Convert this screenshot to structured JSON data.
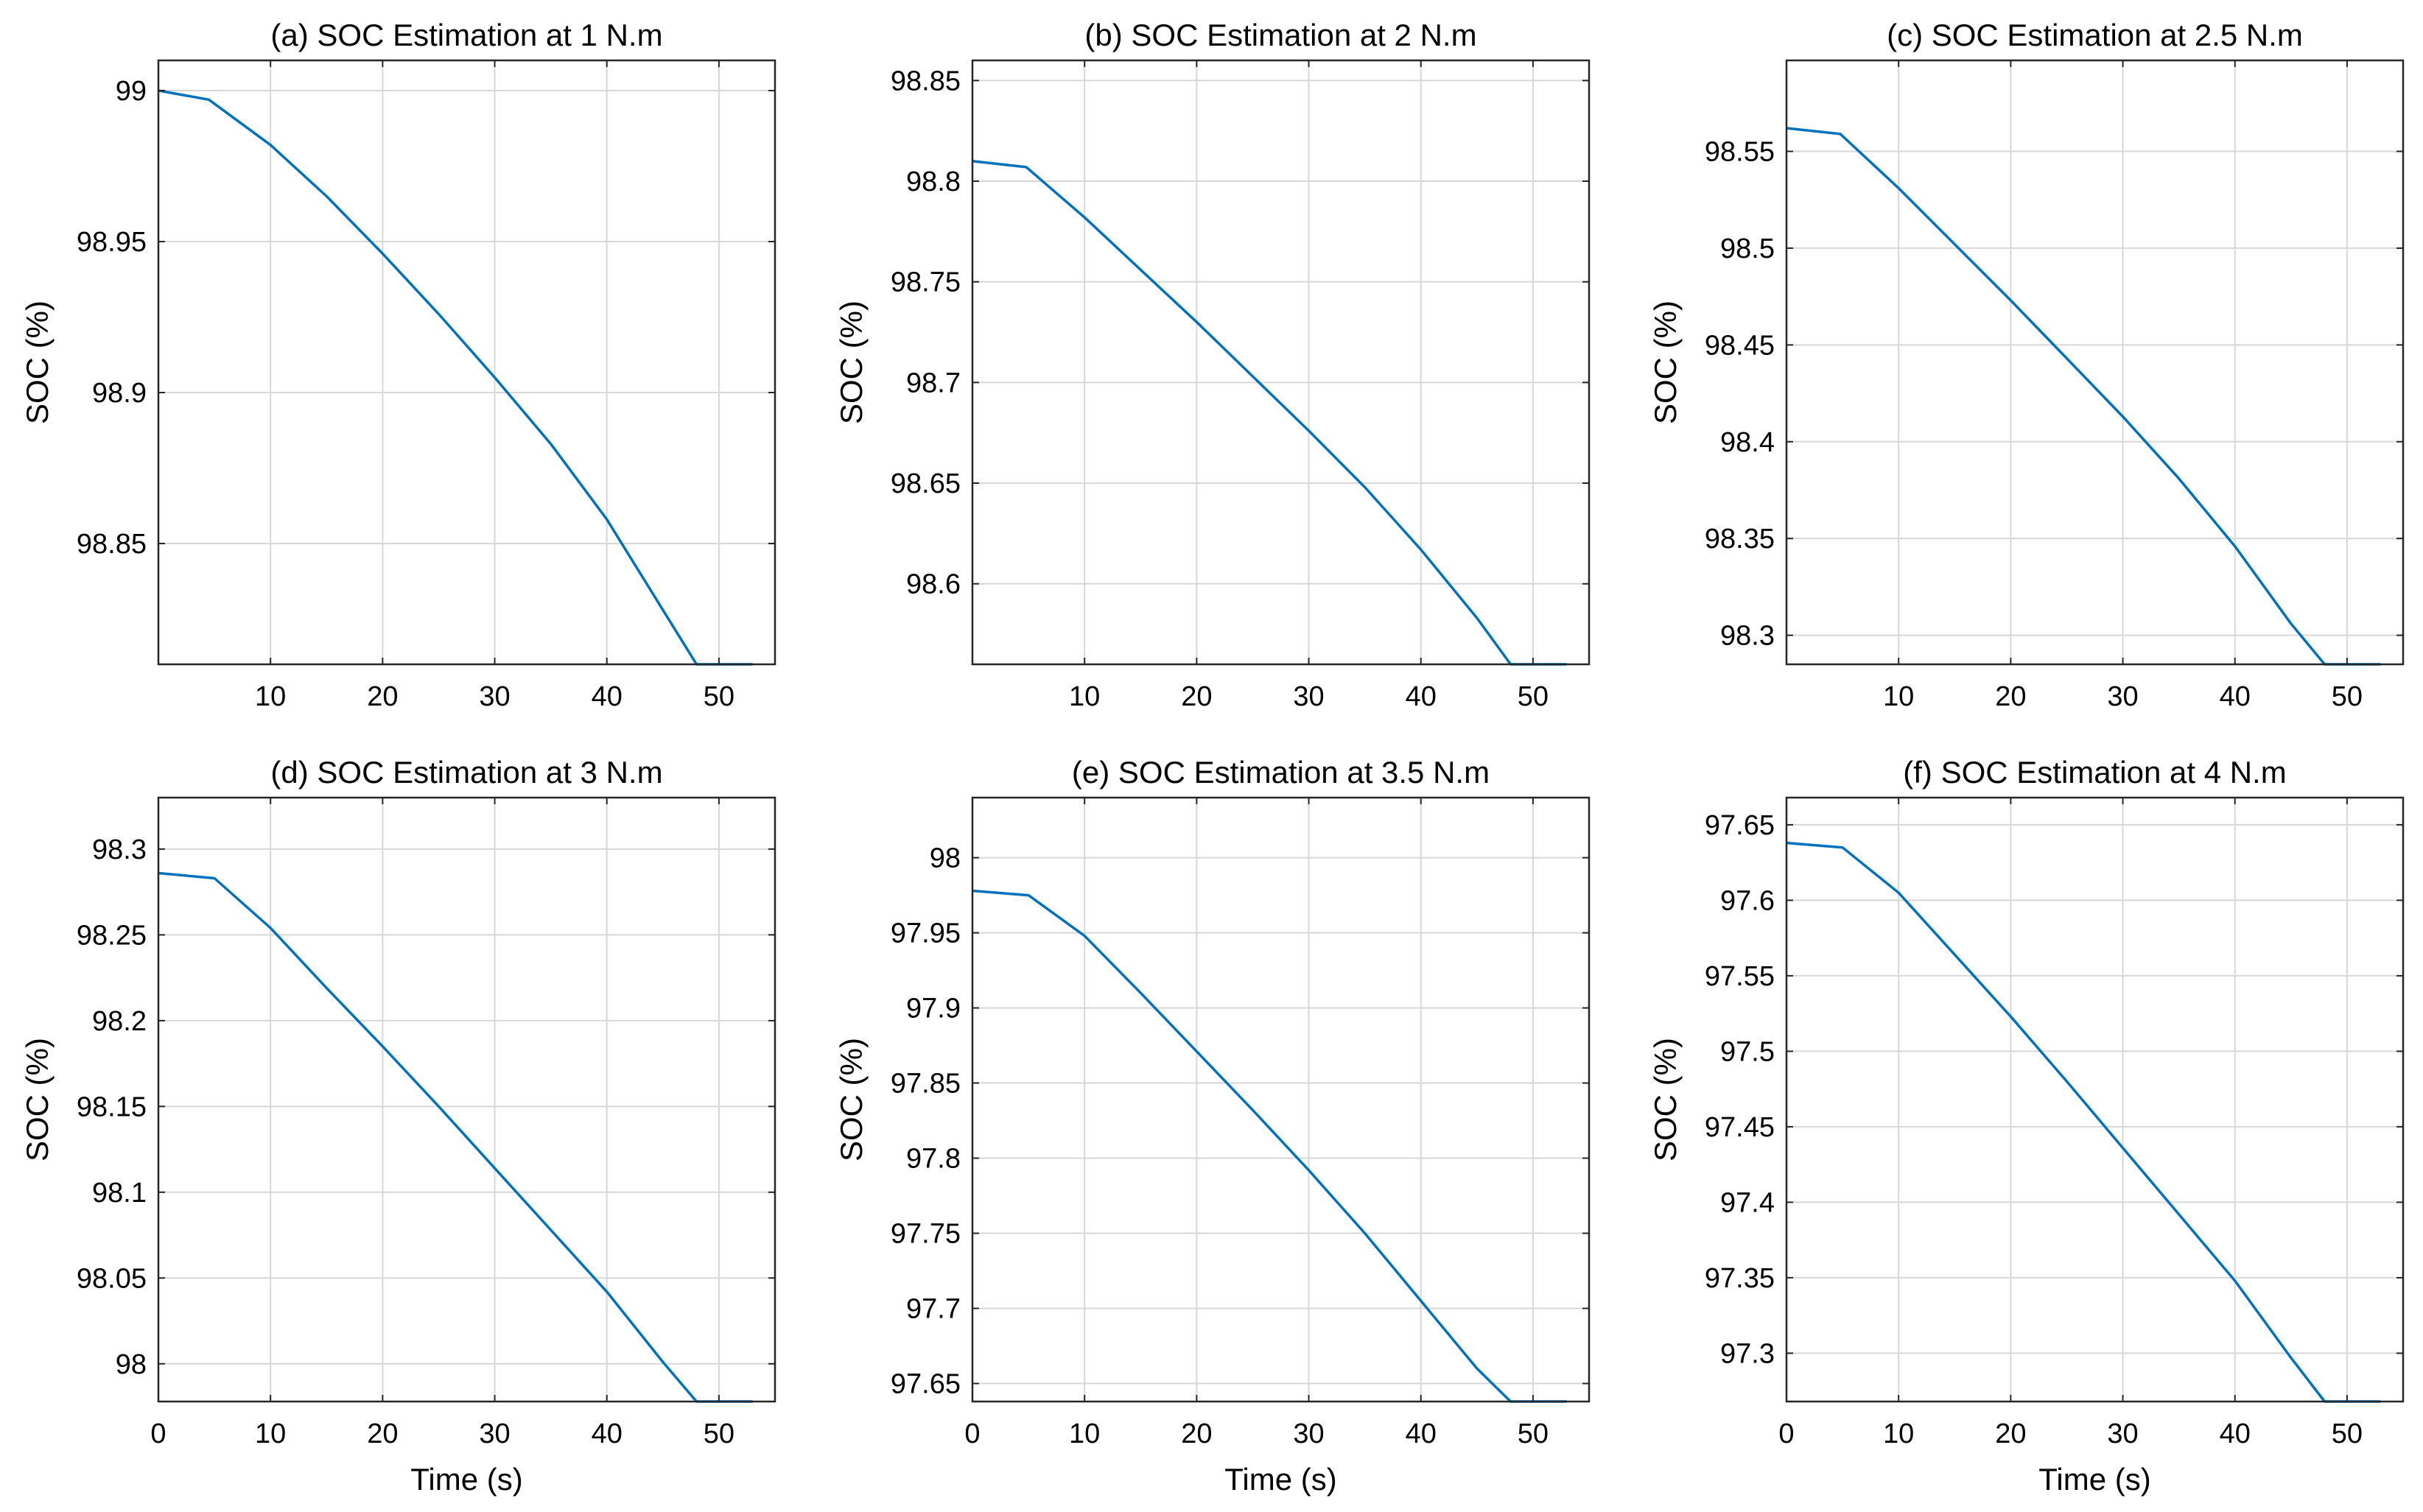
{
  "colors": {
    "series": "#0072BD",
    "grid": "#d7d7d7",
    "axis": "#262626"
  },
  "chart_data": [
    {
      "type": "line",
      "title": "(a) SOC Estimation at 1 N.m",
      "xlabel": "",
      "ylabel": "SOC (%)",
      "xlim": [
        0,
        55
      ],
      "ylim": [
        98.81,
        99.01
      ],
      "xticks": [
        10,
        20,
        30,
        40,
        50
      ],
      "xtick_labels": [
        "10",
        "20",
        "30",
        "40",
        "50"
      ],
      "yticks": [
        98.85,
        98.9,
        98.95,
        99
      ],
      "ytick_labels": [
        "98.85",
        "98.9",
        "98.95",
        "99"
      ],
      "grid": true,
      "series": [
        {
          "name": "SOC",
          "x": [
            0,
            4.5,
            10,
            15,
            20,
            25,
            30,
            35,
            40,
            45,
            48,
            53
          ],
          "y": [
            99.0,
            98.997,
            98.982,
            98.965,
            98.946,
            98.926,
            98.905,
            98.883,
            98.858,
            98.828,
            98.81,
            98.81
          ]
        }
      ]
    },
    {
      "type": "line",
      "title": "(b) SOC Estimation at 2 N.m",
      "xlabel": "",
      "ylabel": "SOC (%)",
      "xlim": [
        0,
        55
      ],
      "ylim": [
        98.56,
        98.86
      ],
      "xticks": [
        10,
        20,
        30,
        40,
        50
      ],
      "xtick_labels": [
        "10",
        "20",
        "30",
        "40",
        "50"
      ],
      "yticks": [
        98.6,
        98.65,
        98.7,
        98.75,
        98.8,
        98.85
      ],
      "ytick_labels": [
        "98.6",
        "98.65",
        "98.7",
        "98.75",
        "98.8",
        "98.85"
      ],
      "grid": true,
      "series": [
        {
          "name": "SOC",
          "x": [
            0,
            4.8,
            10,
            15,
            20,
            25,
            30,
            35,
            40,
            45,
            48,
            53
          ],
          "y": [
            98.81,
            98.807,
            98.782,
            98.756,
            98.73,
            98.703,
            98.676,
            98.648,
            98.617,
            98.583,
            98.56,
            98.56
          ]
        }
      ]
    },
    {
      "type": "line",
      "title": "(c) SOC Estimation at 2.5 N.m",
      "xlabel": "",
      "ylabel": "SOC (%)",
      "xlim": [
        0,
        55
      ],
      "ylim": [
        98.285,
        98.597
      ],
      "xticks": [
        10,
        20,
        30,
        40,
        50
      ],
      "xtick_labels": [
        "10",
        "20",
        "30",
        "40",
        "50"
      ],
      "yticks": [
        98.3,
        98.35,
        98.4,
        98.45,
        98.5,
        98.55
      ],
      "ytick_labels": [
        "98.3",
        "98.35",
        "98.4",
        "98.45",
        "98.5",
        "98.55"
      ],
      "grid": true,
      "series": [
        {
          "name": "SOC",
          "x": [
            0,
            4.8,
            10,
            15,
            20,
            25,
            30,
            35,
            40,
            45,
            48,
            53
          ],
          "y": [
            98.562,
            98.559,
            98.531,
            98.502,
            98.473,
            98.443,
            98.413,
            98.381,
            98.346,
            98.306,
            98.285,
            98.285
          ]
        }
      ]
    },
    {
      "type": "line",
      "title": "(d) SOC Estimation at 3 N.m",
      "xlabel": "Time (s)",
      "ylabel": "SOC (%)",
      "xlim": [
        0,
        55
      ],
      "ylim": [
        97.978,
        98.33
      ],
      "xticks": [
        0,
        10,
        20,
        30,
        40,
        50
      ],
      "xtick_labels": [
        "0",
        "10",
        "20",
        "30",
        "40",
        "50"
      ],
      "yticks": [
        98,
        98.05,
        98.1,
        98.15,
        98.2,
        98.25,
        98.3
      ],
      "ytick_labels": [
        "98",
        "98.05",
        "98.1",
        "98.15",
        "98.2",
        "98.25",
        "98.3"
      ],
      "grid": true,
      "series": [
        {
          "name": "SOC",
          "x": [
            0,
            5,
            10,
            15,
            20,
            25,
            30,
            35,
            40,
            45,
            48,
            53
          ],
          "y": [
            98.286,
            98.283,
            98.254,
            98.219,
            98.185,
            98.15,
            98.114,
            98.078,
            98.042,
            98.001,
            97.978,
            97.978
          ]
        }
      ]
    },
    {
      "type": "line",
      "title": "(e) SOC Estimation at 3.5 N.m",
      "xlabel": "Time (s)",
      "ylabel": "SOC (%)",
      "xlim": [
        0,
        55
      ],
      "ylim": [
        97.638,
        98.04
      ],
      "xticks": [
        0,
        10,
        20,
        30,
        40,
        50
      ],
      "xtick_labels": [
        "0",
        "10",
        "20",
        "30",
        "40",
        "50"
      ],
      "yticks": [
        97.65,
        97.7,
        97.75,
        97.8,
        97.85,
        97.9,
        97.95,
        98
      ],
      "ytick_labels": [
        "97.65",
        "97.7",
        "97.75",
        "97.8",
        "97.85",
        "97.9",
        "97.95",
        "98"
      ],
      "grid": true,
      "series": [
        {
          "name": "SOC",
          "x": [
            0,
            5,
            10,
            15,
            20,
            25,
            30,
            35,
            40,
            45,
            48,
            53
          ],
          "y": [
            97.978,
            97.975,
            97.948,
            97.91,
            97.871,
            97.832,
            97.792,
            97.75,
            97.705,
            97.66,
            97.638,
            97.638
          ]
        }
      ]
    },
    {
      "type": "line",
      "title": "(f) SOC Estimation at 4 N.m",
      "xlabel": "Time (s)",
      "ylabel": "SOC (%)",
      "xlim": [
        0,
        55
      ],
      "ylim": [
        97.268,
        97.668
      ],
      "xticks": [
        0,
        10,
        20,
        30,
        40,
        50
      ],
      "xtick_labels": [
        "0",
        "10",
        "20",
        "30",
        "40",
        "50"
      ],
      "yticks": [
        97.3,
        97.35,
        97.4,
        97.45,
        97.5,
        97.55,
        97.6,
        97.65
      ],
      "ytick_labels": [
        "97.3",
        "97.35",
        "97.4",
        "97.45",
        "97.5",
        "97.55",
        "97.6",
        "97.65"
      ],
      "grid": true,
      "series": [
        {
          "name": "SOC",
          "x": [
            0,
            5,
            10,
            15,
            20,
            25,
            30,
            35,
            40,
            45,
            48,
            53
          ],
          "y": [
            97.638,
            97.635,
            97.605,
            97.564,
            97.523,
            97.48,
            97.436,
            97.392,
            97.348,
            97.297,
            97.268,
            97.268
          ]
        }
      ]
    }
  ]
}
